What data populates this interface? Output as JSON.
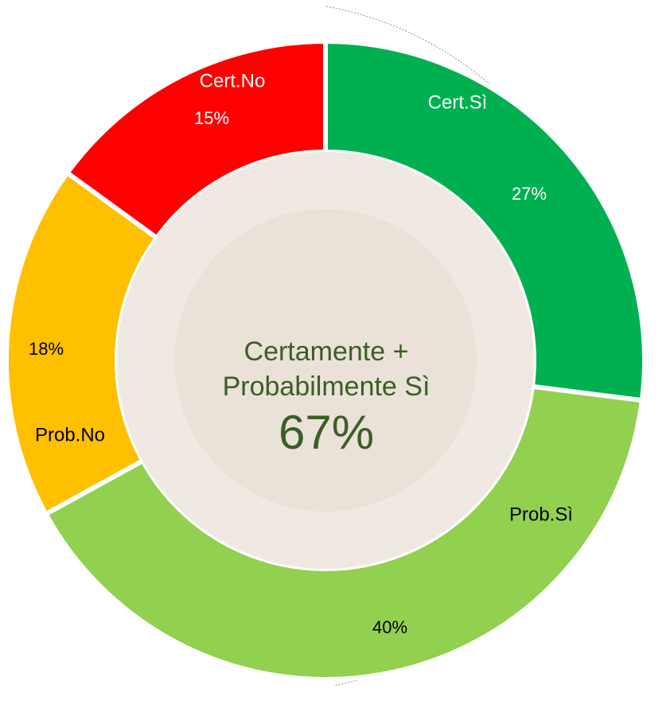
{
  "chart_data": {
    "type": "donut",
    "categories": [
      "Cert.Sì",
      "Prob.Sì",
      "Prob.No",
      "Cert.No"
    ],
    "values": [
      27,
      40,
      18,
      15
    ],
    "value_labels": [
      "27%",
      "40%",
      "18%",
      "15%"
    ],
    "colors": [
      "#00b050",
      "#92d050",
      "#ffc000",
      "#ff0000"
    ],
    "center_text": "Certamente + Probabilmente Sì",
    "center_value": {
      "value": 67,
      "label": "67%"
    }
  }
}
